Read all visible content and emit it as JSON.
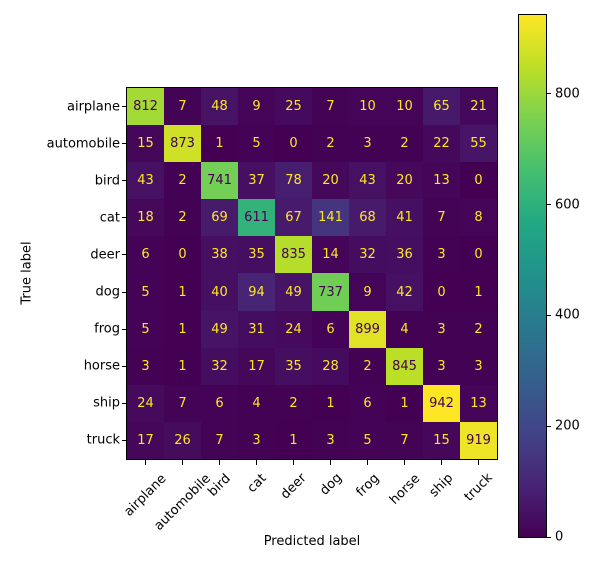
{
  "chart_data": {
    "type": "heatmap",
    "title": "",
    "xlabel": "Predicted label",
    "ylabel": "True label",
    "categories": [
      "airplane",
      "automobile",
      "bird",
      "cat",
      "deer",
      "dog",
      "frog",
      "horse",
      "ship",
      "truck"
    ],
    "matrix": [
      [
        812,
        7,
        48,
        9,
        25,
        7,
        10,
        10,
        65,
        21
      ],
      [
        15,
        873,
        1,
        5,
        0,
        2,
        3,
        2,
        22,
        55
      ],
      [
        43,
        2,
        741,
        37,
        78,
        20,
        43,
        20,
        13,
        0
      ],
      [
        18,
        2,
        69,
        611,
        67,
        141,
        68,
        41,
        7,
        8
      ],
      [
        6,
        0,
        38,
        35,
        835,
        14,
        32,
        36,
        3,
        0
      ],
      [
        5,
        1,
        40,
        94,
        49,
        737,
        9,
        42,
        0,
        1
      ],
      [
        5,
        1,
        49,
        31,
        24,
        6,
        899,
        4,
        3,
        2
      ],
      [
        3,
        1,
        32,
        17,
        35,
        28,
        2,
        845,
        3,
        3
      ],
      [
        24,
        7,
        6,
        4,
        2,
        1,
        6,
        1,
        942,
        13
      ],
      [
        17,
        26,
        7,
        3,
        1,
        3,
        5,
        7,
        15,
        919
      ]
    ],
    "vmin": 0,
    "vmax": 942,
    "colormap": "viridis",
    "colormap_anchors": [
      "#440154",
      "#482475",
      "#414487",
      "#355f8d",
      "#2a788e",
      "#21918c",
      "#22a884",
      "#44bf70",
      "#7ad151",
      "#bddf26",
      "#fde725"
    ],
    "colorbar_ticks": [
      0,
      200,
      400,
      600,
      800
    ],
    "cell_text_color_low": "#fde725",
    "cell_text_color_high": "#440154",
    "xticks_rotation": 45,
    "legend_position": "right-colorbar",
    "grid": false
  }
}
